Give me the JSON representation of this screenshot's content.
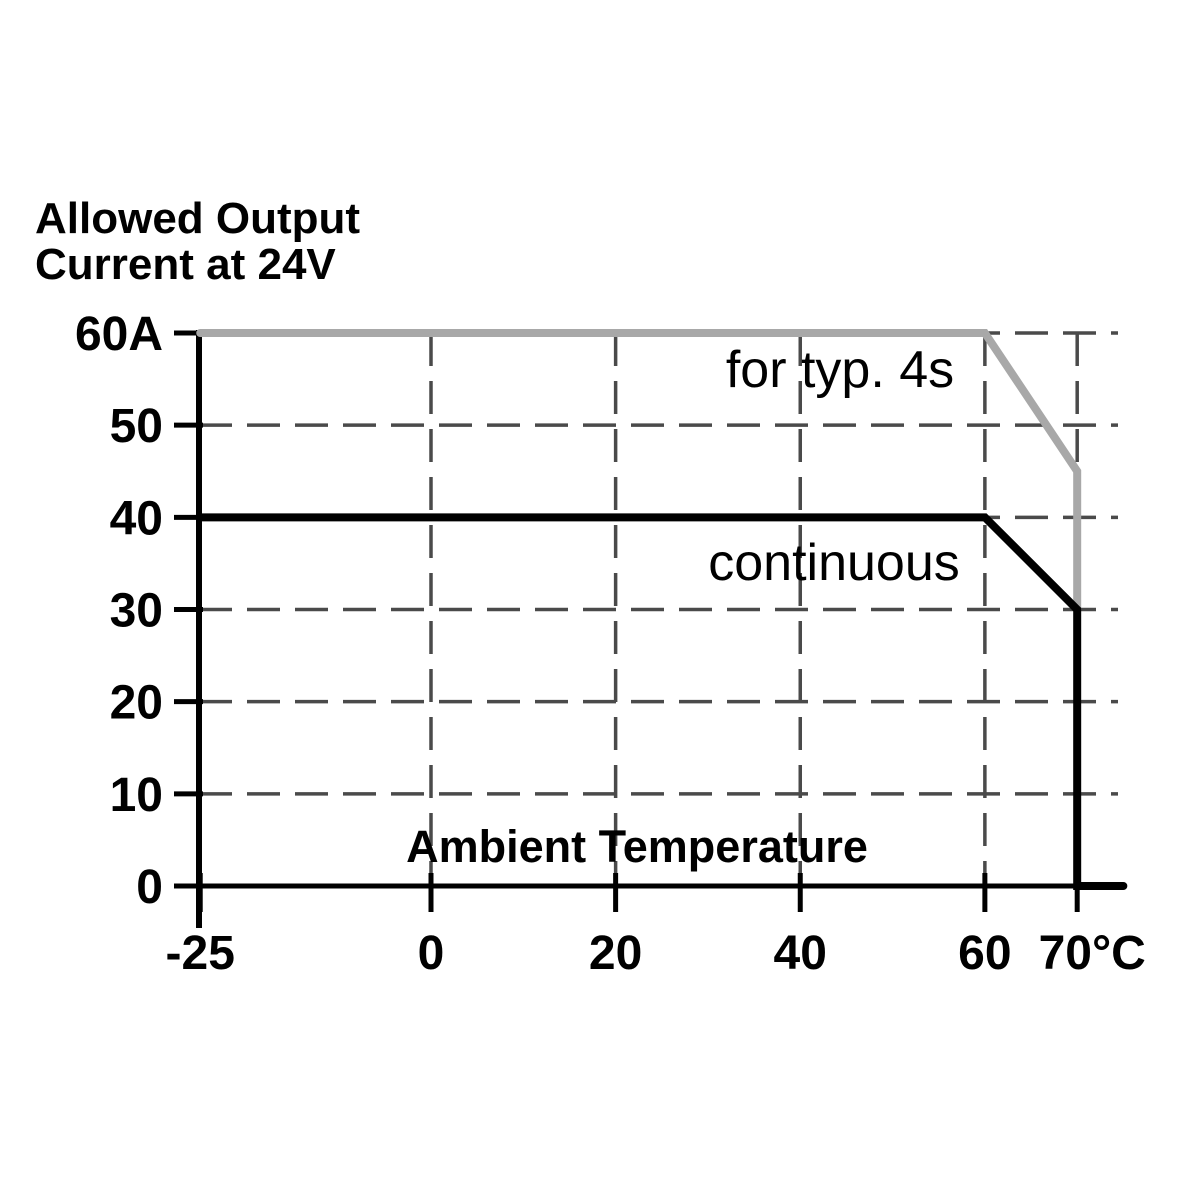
{
  "title": {
    "line1": "Allowed Output",
    "line2": "Current at 24V"
  },
  "colors": {
    "black": "#000000",
    "gray": "#a8a8a8",
    "grid": "#4a4a4a",
    "background": "#ffffff"
  },
  "chart_data": {
    "type": "line",
    "title": "Allowed Output Current at 24V",
    "xlabel": "Ambient Temperature",
    "ylabel": "Allowed Output Current at 24V",
    "x_unit": "°C",
    "y_unit": "A",
    "xlim": [
      -25,
      75
    ],
    "ylim": [
      0,
      60
    ],
    "grid": "dashed",
    "legend_position": "inline-labels",
    "x_ticks": [
      {
        "value": -25,
        "label": "-25"
      },
      {
        "value": 0,
        "label": "0"
      },
      {
        "value": 20,
        "label": "20"
      },
      {
        "value": 40,
        "label": "40"
      },
      {
        "value": 60,
        "label": "60"
      },
      {
        "value": 70,
        "label": "70°C"
      }
    ],
    "y_ticks": [
      {
        "value": 60,
        "label": "60A"
      },
      {
        "value": 50,
        "label": "50"
      },
      {
        "value": 40,
        "label": "40"
      },
      {
        "value": 30,
        "label": "30"
      },
      {
        "value": 20,
        "label": "20"
      },
      {
        "value": 10,
        "label": "10"
      },
      {
        "value": 0,
        "label": "0"
      }
    ],
    "x_gridlines": [
      0,
      20,
      40,
      60,
      70
    ],
    "y_gridlines": [
      10,
      20,
      30,
      40,
      50,
      60
    ],
    "series": [
      {
        "name": "for typ. 4s",
        "color_key": "gray",
        "points": [
          [
            -25,
            60
          ],
          [
            60,
            60
          ],
          [
            70,
            45
          ],
          [
            70,
            30
          ]
        ]
      },
      {
        "name": "continuous",
        "color_key": "black",
        "points": [
          [
            -25,
            40
          ],
          [
            60,
            40
          ],
          [
            70,
            30
          ],
          [
            70,
            0
          ],
          [
            75,
            0
          ]
        ]
      }
    ]
  }
}
